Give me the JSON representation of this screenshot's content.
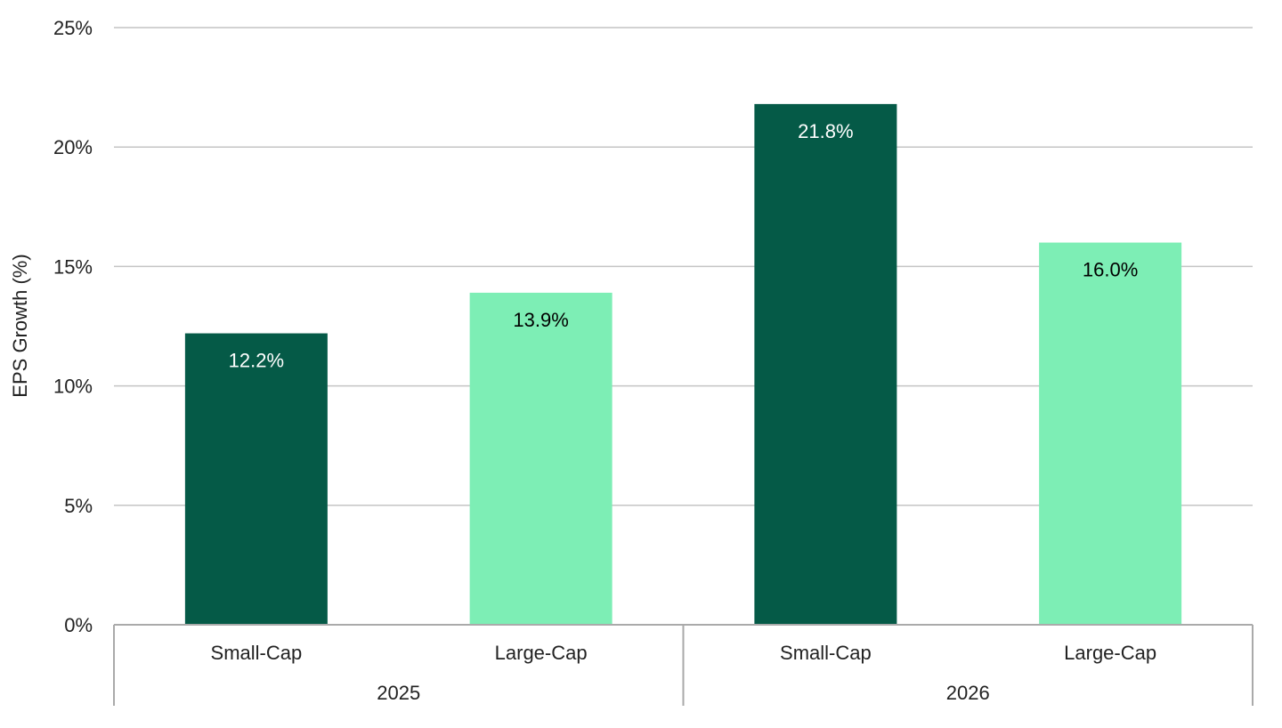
{
  "chart_data": {
    "type": "bar",
    "title": "",
    "xlabel": "",
    "ylabel": "EPS Growth (%)",
    "ylim": [
      0,
      25
    ],
    "yticks": [
      0,
      5,
      10,
      15,
      20,
      25
    ],
    "ytick_labels": [
      "0%",
      "5%",
      "10%",
      "15%",
      "20%",
      "25%"
    ],
    "grid": true,
    "legend": "none",
    "groups": [
      {
        "label": "2025",
        "bars": [
          {
            "category": "Small-Cap",
            "value": 12.2,
            "label": "12.2%",
            "color": "#055a47",
            "label_color": "#ffffff"
          },
          {
            "category": "Large-Cap",
            "value": 13.9,
            "label": "13.9%",
            "color": "#7deeb5",
            "label_color": "#000000"
          }
        ]
      },
      {
        "label": "2026",
        "bars": [
          {
            "category": "Small-Cap",
            "value": 21.8,
            "label": "21.8%",
            "color": "#055a47",
            "label_color": "#ffffff"
          },
          {
            "category": "Large-Cap",
            "value": 16.0,
            "label": "16.0%",
            "color": "#7deeb5",
            "label_color": "#000000"
          }
        ]
      }
    ]
  }
}
